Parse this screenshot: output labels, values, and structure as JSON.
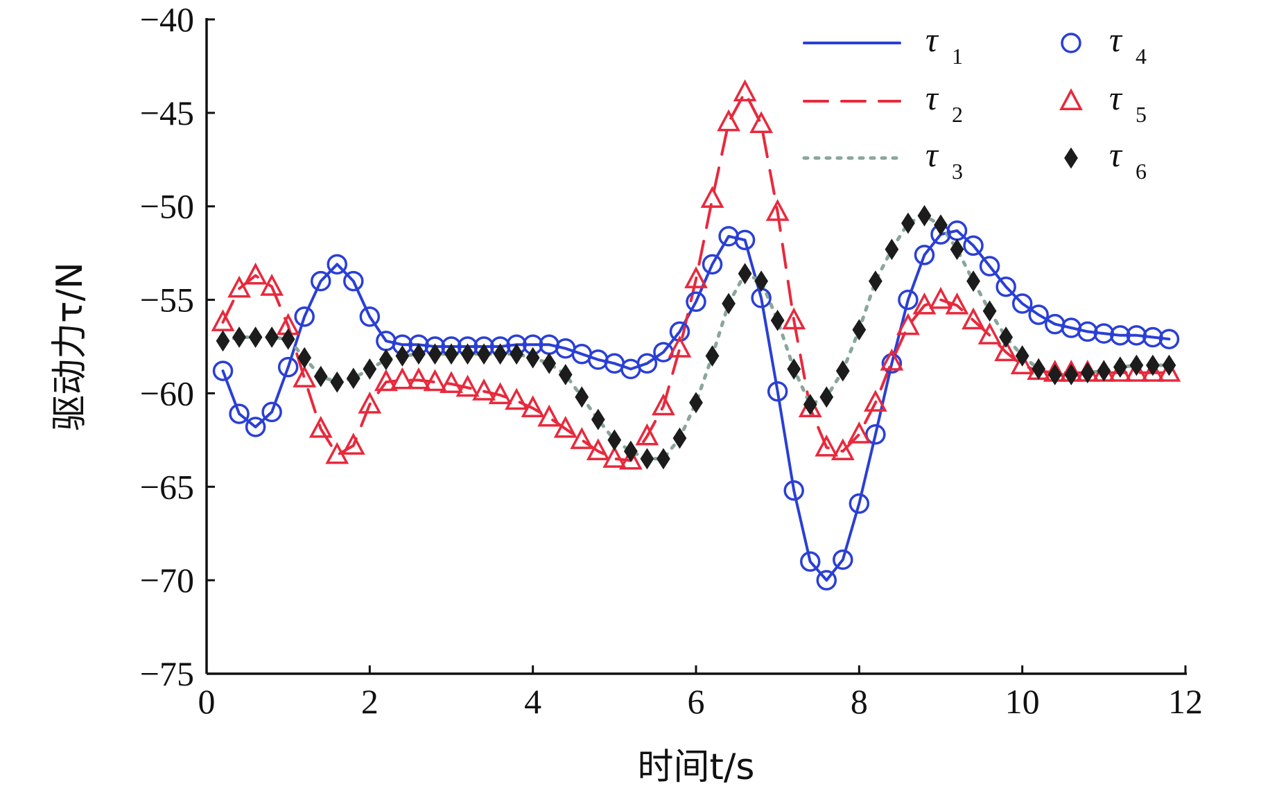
{
  "chart_data": {
    "type": "line",
    "xlabel": "时间t/s",
    "ylabel": "驱动力τ/N",
    "xlim": [
      0,
      12
    ],
    "ylim": [
      -75,
      -40
    ],
    "xticks": [
      0,
      2,
      4,
      6,
      8,
      10,
      12
    ],
    "yticks": [
      -40,
      -45,
      -50,
      -55,
      -60,
      -65,
      -70,
      -75
    ],
    "grid": false,
    "legend_position": "top-right",
    "legend": [
      {
        "label": "τ",
        "sub": "1"
      },
      {
        "label": "τ",
        "sub": "2"
      },
      {
        "label": "τ",
        "sub": "3"
      },
      {
        "label": "τ",
        "sub": "4"
      },
      {
        "label": "τ",
        "sub": "5"
      },
      {
        "label": "τ",
        "sub": "6"
      }
    ],
    "series": [
      {
        "color": "#2a3fd6",
        "style": "solid",
        "x": [
          0.2,
          0.4,
          0.6,
          0.8,
          1.0,
          1.2,
          1.4,
          1.6,
          1.8,
          2.0,
          2.2,
          2.4,
          2.6,
          2.8,
          3.0,
          3.2,
          3.4,
          3.6,
          3.8,
          4.0,
          4.2,
          4.4,
          4.6,
          4.8,
          5.0,
          5.2,
          5.4,
          5.6,
          5.8,
          6.0,
          6.2,
          6.4,
          6.6,
          6.8,
          7.0,
          7.2,
          7.4,
          7.6,
          7.8,
          8.0,
          8.2,
          8.4,
          8.6,
          8.8,
          9.0,
          9.2,
          9.4,
          9.6,
          9.8,
          10.0,
          10.2,
          10.4,
          10.6,
          10.8,
          11.0,
          11.2,
          11.4,
          11.6,
          11.8
        ],
        "y": [
          -58.8,
          -61.1,
          -61.8,
          -61.0,
          -58.6,
          -55.9,
          -54.0,
          -53.1,
          -54.0,
          -55.9,
          -57.2,
          -57.4,
          -57.4,
          -57.5,
          -57.5,
          -57.5,
          -57.5,
          -57.5,
          -57.4,
          -57.4,
          -57.4,
          -57.6,
          -57.9,
          -58.2,
          -58.4,
          -58.7,
          -58.4,
          -57.8,
          -56.7,
          -55.1,
          -53.1,
          -51.6,
          -51.8,
          -54.9,
          -59.9,
          -65.2,
          -69.0,
          -70.0,
          -68.9,
          -65.9,
          -62.2,
          -58.4,
          -55.0,
          -52.6,
          -51.5,
          -51.3,
          -52.1,
          -53.2,
          -54.3,
          -55.2,
          -55.8,
          -56.3,
          -56.5,
          -56.7,
          -56.8,
          -56.9,
          -56.9,
          -57.0,
          -57.1
        ]
      },
      {
        "color": "#e8293c",
        "style": "dashed",
        "x": [
          0.2,
          0.4,
          0.6,
          0.8,
          1.0,
          1.2,
          1.4,
          1.6,
          1.8,
          2.0,
          2.2,
          2.4,
          2.6,
          2.8,
          3.0,
          3.2,
          3.4,
          3.6,
          3.8,
          4.0,
          4.2,
          4.4,
          4.6,
          4.8,
          5.0,
          5.2,
          5.4,
          5.6,
          5.8,
          6.0,
          6.2,
          6.4,
          6.6,
          6.8,
          7.0,
          7.2,
          7.4,
          7.6,
          7.8,
          8.0,
          8.2,
          8.4,
          8.6,
          8.8,
          9.0,
          9.2,
          9.4,
          9.6,
          9.8,
          10.0,
          10.2,
          10.4,
          10.6,
          10.8,
          11.0,
          11.2,
          11.4,
          11.6,
          11.8
        ],
        "y": [
          -56.2,
          -54.4,
          -53.7,
          -54.3,
          -56.4,
          -59.2,
          -61.9,
          -63.3,
          -62.8,
          -60.6,
          -59.4,
          -59.3,
          -59.3,
          -59.4,
          -59.5,
          -59.7,
          -59.9,
          -60.1,
          -60.4,
          -60.8,
          -61.3,
          -61.9,
          -62.5,
          -63.1,
          -63.5,
          -63.6,
          -62.3,
          -60.7,
          -57.6,
          -53.9,
          -49.6,
          -45.5,
          -43.9,
          -45.6,
          -50.3,
          -56.1,
          -60.8,
          -62.9,
          -63.1,
          -62.2,
          -60.5,
          -58.3,
          -56.4,
          -55.3,
          -55.0,
          -55.3,
          -56.1,
          -56.9,
          -57.8,
          -58.5,
          -58.8,
          -58.9,
          -58.9,
          -58.9,
          -58.9,
          -58.9,
          -58.9,
          -58.9,
          -58.9
        ]
      },
      {
        "color": "#8aa69a",
        "style": "dotted",
        "x": [
          0.2,
          0.4,
          0.6,
          0.8,
          1.0,
          1.2,
          1.4,
          1.6,
          1.8,
          2.0,
          2.2,
          2.4,
          2.6,
          2.8,
          3.0,
          3.2,
          3.4,
          3.6,
          3.8,
          4.0,
          4.2,
          4.4,
          4.6,
          4.8,
          5.0,
          5.2,
          5.4,
          5.6,
          5.8,
          6.0,
          6.2,
          6.4,
          6.6,
          6.8,
          7.0,
          7.2,
          7.4,
          7.6,
          7.8,
          8.0,
          8.2,
          8.4,
          8.6,
          8.8,
          9.0,
          9.2,
          9.4,
          9.6,
          9.8,
          10.0,
          10.2,
          10.4,
          10.6,
          10.8,
          11.0,
          11.2,
          11.4,
          11.6,
          11.8
        ],
        "y": [
          -57.2,
          -57.0,
          -57.0,
          -57.0,
          -57.1,
          -58.1,
          -59.1,
          -59.4,
          -59.2,
          -58.7,
          -58.2,
          -58.0,
          -57.9,
          -57.9,
          -57.9,
          -57.9,
          -57.9,
          -57.9,
          -57.9,
          -58.1,
          -58.4,
          -59.0,
          -60.2,
          -61.4,
          -62.5,
          -63.1,
          -63.5,
          -63.5,
          -62.4,
          -60.5,
          -58.0,
          -55.2,
          -53.6,
          -54.0,
          -56.1,
          -58.7,
          -60.6,
          -60.2,
          -58.8,
          -56.6,
          -54.0,
          -52.3,
          -50.9,
          -50.5,
          -51.0,
          -52.3,
          -54.0,
          -55.6,
          -57.0,
          -58.0,
          -58.7,
          -59.0,
          -59.0,
          -58.9,
          -58.8,
          -58.6,
          -58.5,
          -58.5,
          -58.5
        ]
      },
      {
        "color": "#2a3fd6",
        "marker": "circle",
        "x": [
          0.2,
          0.4,
          0.6,
          0.8,
          1.0,
          1.2,
          1.4,
          1.6,
          1.8,
          2.0,
          2.2,
          2.4,
          2.6,
          2.8,
          3.0,
          3.2,
          3.4,
          3.6,
          3.8,
          4.0,
          4.2,
          4.4,
          4.6,
          4.8,
          5.0,
          5.2,
          5.4,
          5.6,
          5.8,
          6.0,
          6.2,
          6.4,
          6.6,
          6.8,
          7.0,
          7.2,
          7.4,
          7.6,
          7.8,
          8.0,
          8.2,
          8.4,
          8.6,
          8.8,
          9.0,
          9.2,
          9.4,
          9.6,
          9.8,
          10.0,
          10.2,
          10.4,
          10.6,
          10.8,
          11.0,
          11.2,
          11.4,
          11.6,
          11.8
        ],
        "y": [
          -58.8,
          -61.1,
          -61.8,
          -61.0,
          -58.6,
          -55.9,
          -54.0,
          -53.1,
          -54.0,
          -55.9,
          -57.2,
          -57.4,
          -57.4,
          -57.5,
          -57.5,
          -57.5,
          -57.5,
          -57.5,
          -57.4,
          -57.4,
          -57.4,
          -57.6,
          -57.9,
          -58.2,
          -58.4,
          -58.7,
          -58.4,
          -57.8,
          -56.7,
          -55.1,
          -53.1,
          -51.6,
          -51.8,
          -54.9,
          -59.9,
          -65.2,
          -69.0,
          -70.0,
          -68.9,
          -65.9,
          -62.2,
          -58.4,
          -55.0,
          -52.6,
          -51.5,
          -51.3,
          -52.1,
          -53.2,
          -54.3,
          -55.2,
          -55.8,
          -56.3,
          -56.5,
          -56.7,
          -56.8,
          -56.9,
          -56.9,
          -57.0,
          -57.1
        ]
      },
      {
        "color": "#e8293c",
        "marker": "triangle",
        "x": [
          0.2,
          0.4,
          0.6,
          0.8,
          1.0,
          1.2,
          1.4,
          1.6,
          1.8,
          2.0,
          2.2,
          2.4,
          2.6,
          2.8,
          3.0,
          3.2,
          3.4,
          3.6,
          3.8,
          4.0,
          4.2,
          4.4,
          4.6,
          4.8,
          5.0,
          5.2,
          5.4,
          5.6,
          5.8,
          6.0,
          6.2,
          6.4,
          6.6,
          6.8,
          7.0,
          7.2,
          7.4,
          7.6,
          7.8,
          8.0,
          8.2,
          8.4,
          8.6,
          8.8,
          9.0,
          9.2,
          9.4,
          9.6,
          9.8,
          10.0,
          10.2,
          10.4,
          10.6,
          10.8,
          11.0,
          11.2,
          11.4,
          11.6,
          11.8
        ],
        "y": [
          -56.2,
          -54.4,
          -53.7,
          -54.3,
          -56.4,
          -59.2,
          -61.9,
          -63.3,
          -62.8,
          -60.6,
          -59.4,
          -59.3,
          -59.3,
          -59.4,
          -59.5,
          -59.7,
          -59.9,
          -60.1,
          -60.4,
          -60.8,
          -61.3,
          -61.9,
          -62.5,
          -63.1,
          -63.5,
          -63.6,
          -62.3,
          -60.7,
          -57.6,
          -53.9,
          -49.6,
          -45.5,
          -43.9,
          -45.6,
          -50.3,
          -56.1,
          -60.8,
          -62.9,
          -63.1,
          -62.2,
          -60.5,
          -58.3,
          -56.4,
          -55.3,
          -55.0,
          -55.3,
          -56.1,
          -56.9,
          -57.8,
          -58.5,
          -58.8,
          -58.9,
          -58.9,
          -58.9,
          -58.9,
          -58.9,
          -58.9,
          -58.9,
          -58.9
        ]
      },
      {
        "color": "#1c1c1c",
        "marker": "diamond",
        "x": [
          0.2,
          0.4,
          0.6,
          0.8,
          1.0,
          1.2,
          1.4,
          1.6,
          1.8,
          2.0,
          2.2,
          2.4,
          2.6,
          2.8,
          3.0,
          3.2,
          3.4,
          3.6,
          3.8,
          4.0,
          4.2,
          4.4,
          4.6,
          4.8,
          5.0,
          5.2,
          5.4,
          5.6,
          5.8,
          6.0,
          6.2,
          6.4,
          6.6,
          6.8,
          7.0,
          7.2,
          7.4,
          7.6,
          7.8,
          8.0,
          8.2,
          8.4,
          8.6,
          8.8,
          9.0,
          9.2,
          9.4,
          9.6,
          9.8,
          10.0,
          10.2,
          10.4,
          10.6,
          10.8,
          11.0,
          11.2,
          11.4,
          11.6,
          11.8
        ],
        "y": [
          -57.2,
          -57.0,
          -57.0,
          -57.0,
          -57.1,
          -58.1,
          -59.1,
          -59.4,
          -59.2,
          -58.7,
          -58.2,
          -58.0,
          -57.9,
          -57.9,
          -57.9,
          -57.9,
          -57.9,
          -57.9,
          -57.9,
          -58.1,
          -58.4,
          -59.0,
          -60.2,
          -61.4,
          -62.5,
          -63.1,
          -63.5,
          -63.5,
          -62.4,
          -60.5,
          -58.0,
          -55.2,
          -53.6,
          -54.0,
          -56.1,
          -58.7,
          -60.6,
          -60.2,
          -58.8,
          -56.6,
          -54.0,
          -52.3,
          -50.9,
          -50.5,
          -51.0,
          -52.3,
          -54.0,
          -55.6,
          -57.0,
          -58.0,
          -58.7,
          -59.0,
          -59.0,
          -58.9,
          -58.8,
          -58.6,
          -58.5,
          -58.5,
          -58.5
        ]
      }
    ]
  }
}
